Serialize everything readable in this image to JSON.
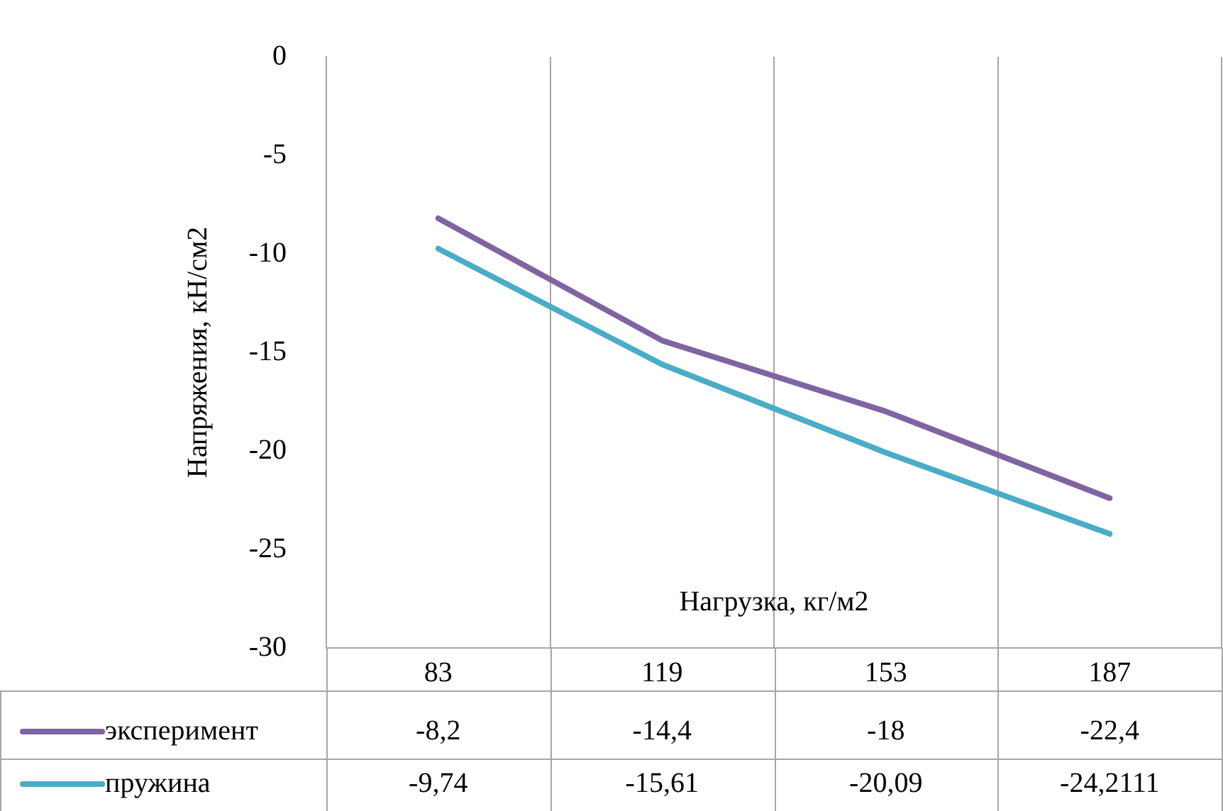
{
  "chart_data": {
    "type": "line",
    "xlabel": "Нагрузка, кг/м2",
    "ylabel": "Напряжения, кН/см2",
    "categories": [
      "83",
      "119",
      "153",
      "187"
    ],
    "series": [
      {
        "name": "эксперимент",
        "color": "#8064a2",
        "values": [
          -8.2,
          -14.4,
          -18,
          -22.4
        ],
        "value_labels": [
          "-8,2",
          "-14,4",
          "-18",
          "-22,4"
        ]
      },
      {
        "name": "пружина",
        "color": "#4bacc6",
        "values": [
          -9.74,
          -15.61,
          -20.09,
          -24.2111
        ],
        "value_labels": [
          "-9,74",
          "-15,61",
          "-20,09",
          "-24,2111"
        ]
      }
    ],
    "ylim": [
      -30,
      0
    ],
    "yticks": [
      0,
      -5,
      -10,
      -15,
      -20,
      -25,
      -30
    ],
    "grid": "x",
    "legend": "bottom",
    "marker": "none",
    "line_style": "solid"
  }
}
